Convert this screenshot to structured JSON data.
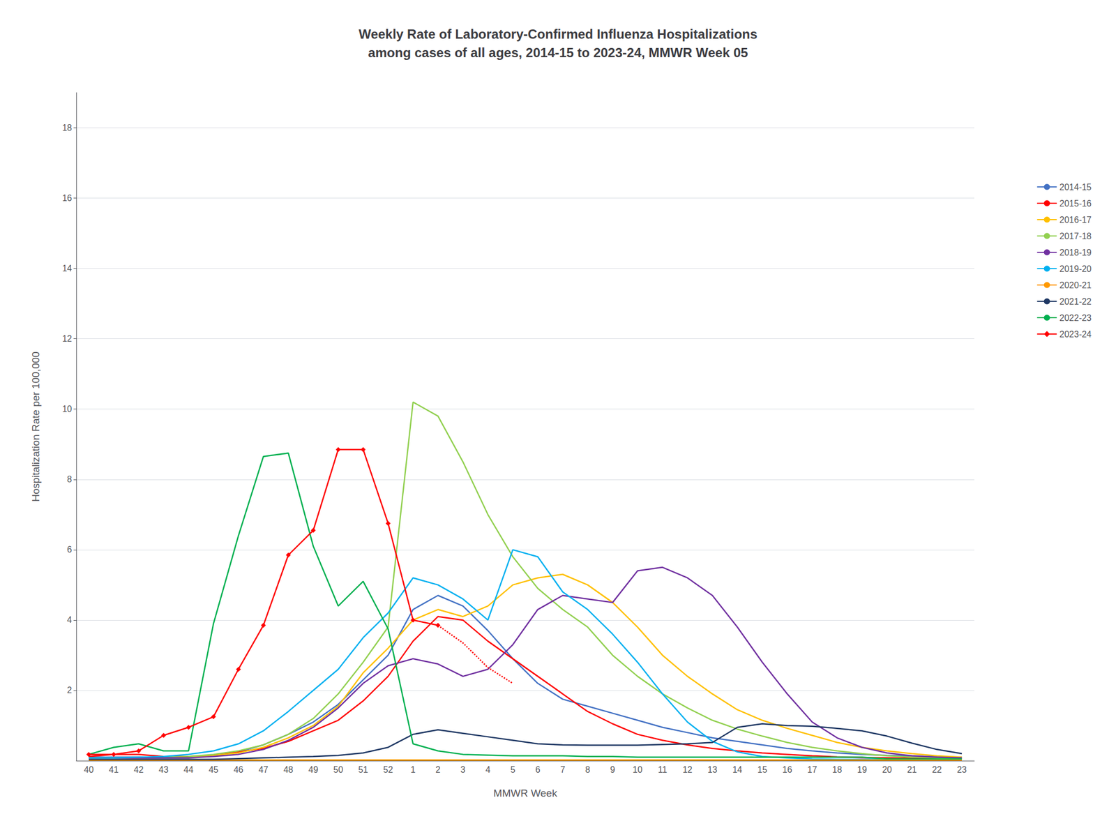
{
  "chart_data": {
    "type": "line",
    "title": "Weekly Rate of Laboratory-Confirmed Influenza Hospitalizations\namong cases of all ages, 2014-15 to 2023-24, MMWR Week 05",
    "x_label": "MMWR Week",
    "y_label": "Hospitalization Rate per 100,000",
    "categories": [
      "40",
      "41",
      "42",
      "43",
      "44",
      "45",
      "46",
      "47",
      "48",
      "49",
      "50",
      "51",
      "52",
      "1",
      "2",
      "3",
      "4",
      "5",
      "6",
      "7",
      "8",
      "9",
      "10",
      "11",
      "12",
      "13",
      "14",
      "15",
      "16",
      "17",
      "18",
      "19",
      "20",
      "21",
      "22",
      "23"
    ],
    "ylim": [
      0,
      19
    ],
    "yticks": [
      2,
      4,
      6,
      8,
      10,
      12,
      14,
      16,
      18
    ],
    "grid": true,
    "legend": "right",
    "series": [
      {
        "name": "2014-15",
        "color": "#4472C4",
        "values": [
          0.1,
          0.1,
          0.1,
          0.1,
          0.1,
          0.15,
          0.25,
          0.45,
          0.75,
          1.1,
          1.6,
          2.3,
          3.0,
          4.3,
          4.7,
          4.4,
          3.7,
          2.9,
          2.2,
          1.75,
          1.55,
          1.35,
          1.15,
          0.95,
          0.8,
          0.65,
          0.55,
          0.45,
          0.35,
          0.28,
          0.22,
          0.18,
          0.15,
          0.13,
          0.12,
          0.1
        ]
      },
      {
        "name": "2015-16",
        "color": "#FF0000",
        "values": [
          0.12,
          0.18,
          0.18,
          0.12,
          0.12,
          0.15,
          0.25,
          0.35,
          0.55,
          0.85,
          1.15,
          1.7,
          2.4,
          3.4,
          4.1,
          4.0,
          3.4,
          2.9,
          2.4,
          1.9,
          1.4,
          1.05,
          0.75,
          0.58,
          0.45,
          0.35,
          0.28,
          0.22,
          0.18,
          0.14,
          0.11,
          0.09,
          0.08,
          0.07,
          0.07,
          0.06
        ]
      },
      {
        "name": "2016-17",
        "color": "#FFC000",
        "values": [
          0.08,
          0.08,
          0.08,
          0.08,
          0.1,
          0.15,
          0.22,
          0.38,
          0.65,
          1.0,
          1.55,
          2.5,
          3.2,
          4.0,
          4.3,
          4.1,
          4.4,
          5.0,
          5.2,
          5.3,
          5.0,
          4.5,
          3.8,
          3.0,
          2.4,
          1.9,
          1.45,
          1.15,
          0.92,
          0.72,
          0.52,
          0.38,
          0.28,
          0.2,
          0.14,
          0.1
        ]
      },
      {
        "name": "2017-18",
        "color": "#92D050",
        "values": [
          0.08,
          0.08,
          0.08,
          0.1,
          0.12,
          0.18,
          0.28,
          0.45,
          0.75,
          1.2,
          1.9,
          2.8,
          3.8,
          10.2,
          9.8,
          8.5,
          7.0,
          5.8,
          4.9,
          4.3,
          3.8,
          3.0,
          2.4,
          1.9,
          1.5,
          1.15,
          0.9,
          0.7,
          0.52,
          0.38,
          0.28,
          0.2,
          0.14,
          0.1,
          0.08,
          0.07
        ]
      },
      {
        "name": "2018-19",
        "color": "#7030A0",
        "values": [
          0.08,
          0.08,
          0.08,
          0.08,
          0.08,
          0.12,
          0.18,
          0.32,
          0.58,
          0.95,
          1.5,
          2.2,
          2.7,
          2.9,
          2.75,
          2.4,
          2.6,
          3.3,
          4.3,
          4.7,
          4.6,
          4.5,
          5.4,
          5.5,
          5.2,
          4.7,
          3.8,
          2.8,
          1.9,
          1.1,
          0.65,
          0.38,
          0.22,
          0.14,
          0.1,
          0.08
        ]
      },
      {
        "name": "2019-20",
        "color": "#00B0F0",
        "values": [
          0.08,
          0.08,
          0.1,
          0.12,
          0.18,
          0.28,
          0.48,
          0.85,
          1.4,
          2.0,
          2.6,
          3.5,
          4.2,
          5.2,
          5.0,
          4.6,
          4.0,
          6.0,
          5.8,
          4.8,
          4.3,
          3.6,
          2.8,
          1.9,
          1.1,
          0.55,
          0.25,
          0.12,
          0.08,
          0.05,
          0.04,
          0.04,
          0.04,
          0.04,
          0.04,
          0.04
        ]
      },
      {
        "name": "2020-21",
        "color": "#FF9900",
        "values": [
          0.02,
          0.02,
          0.02,
          0.02,
          0.02,
          0.02,
          0.02,
          0.02,
          0.02,
          0.02,
          0.02,
          0.02,
          0.02,
          0.02,
          0.02,
          0.02,
          0.02,
          0.02,
          0.02,
          0.02,
          0.02,
          0.02,
          0.02,
          0.02,
          0.02,
          0.02,
          0.02,
          0.02,
          0.02,
          0.02,
          0.02,
          0.02,
          0.02,
          0.02,
          0.02,
          0.02
        ]
      },
      {
        "name": "2021-22",
        "color": "#1F3864",
        "values": [
          0.04,
          0.04,
          0.04,
          0.04,
          0.04,
          0.04,
          0.06,
          0.08,
          0.1,
          0.12,
          0.15,
          0.22,
          0.38,
          0.75,
          0.88,
          0.78,
          0.68,
          0.58,
          0.48,
          0.45,
          0.44,
          0.44,
          0.44,
          0.46,
          0.48,
          0.52,
          0.95,
          1.05,
          1.0,
          0.98,
          0.92,
          0.85,
          0.7,
          0.5,
          0.32,
          0.2
        ]
      },
      {
        "name": "2022-23",
        "color": "#00B050",
        "values": [
          0.18,
          0.38,
          0.48,
          0.28,
          0.28,
          3.9,
          6.4,
          8.65,
          8.75,
          6.1,
          4.4,
          5.1,
          3.75,
          0.48,
          0.28,
          0.18,
          0.16,
          0.14,
          0.14,
          0.14,
          0.12,
          0.12,
          0.1,
          0.1,
          0.1,
          0.1,
          0.1,
          0.1,
          0.1,
          0.1,
          0.1,
          0.1,
          0.05,
          0.05,
          0.05,
          0.05
        ]
      },
      {
        "name": "2023-24",
        "color": "#FF0000",
        "marker": "diamond",
        "line_style": "solid",
        "values": [
          0.18,
          0.18,
          0.28,
          0.72,
          0.95,
          1.25,
          2.6,
          3.85,
          5.85,
          6.55,
          8.85,
          8.85,
          6.75,
          4.0,
          3.85,
          null,
          null,
          null,
          null,
          null,
          null,
          null,
          null,
          null,
          null,
          null,
          null,
          null,
          null,
          null,
          null,
          null,
          null,
          null,
          null,
          null
        ]
      },
      {
        "color": "#FF0000",
        "line_style": "dotted",
        "values": [
          null,
          null,
          null,
          null,
          null,
          null,
          null,
          null,
          null,
          null,
          null,
          null,
          null,
          null,
          3.85,
          3.35,
          2.65,
          2.2,
          null,
          null,
          null,
          null,
          null,
          null,
          null,
          null,
          null,
          null,
          null,
          null,
          null,
          null,
          null,
          null,
          null,
          null
        ]
      }
    ]
  }
}
